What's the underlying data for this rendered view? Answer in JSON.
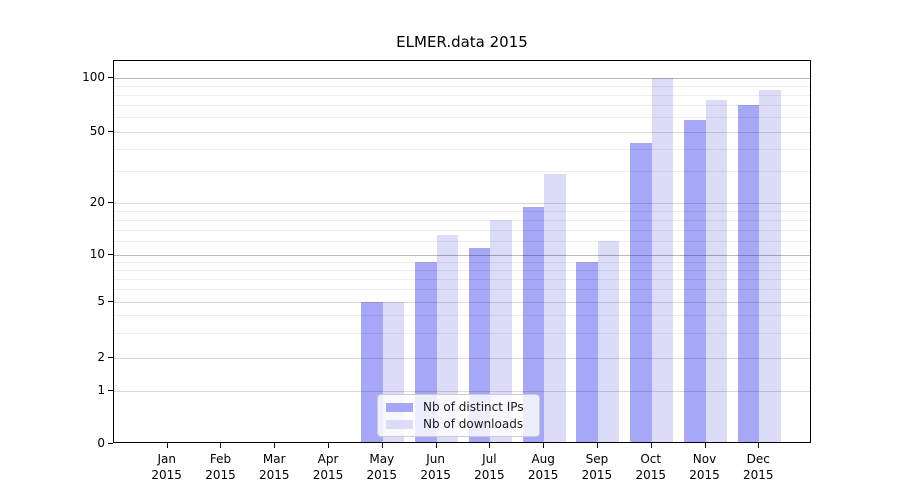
{
  "title": "ELMER.data 2015",
  "chart_data": {
    "type": "bar",
    "title": "ELMER.data 2015",
    "categories": [
      "Jan 2015",
      "Feb 2015",
      "Mar 2015",
      "Apr 2015",
      "May 2015",
      "Jun 2015",
      "Jul 2015",
      "Aug 2015",
      "Sep 2015",
      "Oct 2015",
      "Nov 2015",
      "Dec 2015"
    ],
    "series": [
      {
        "name": "Nb of distinct IPs",
        "color": "#a7a7f7",
        "values": [
          0,
          0,
          0,
          0,
          5,
          9,
          11,
          19,
          9,
          43,
          58,
          70
        ]
      },
      {
        "name": "Nb of downloads",
        "color": "#dcdcf9",
        "values": [
          0,
          0,
          0,
          0,
          5,
          13,
          16,
          29,
          12,
          100,
          75,
          85
        ]
      }
    ],
    "xlabel": "",
    "ylabel": "",
    "yscale": "quasi-log with linear segment below 1",
    "yticks": [
      0,
      1,
      2,
      5,
      10,
      20,
      50,
      100
    ],
    "yticks_minor": [
      3,
      4,
      6,
      7,
      8,
      9,
      12,
      14,
      16,
      18,
      30,
      40,
      60,
      70,
      80,
      90
    ],
    "ylim": [
      0,
      120
    ],
    "grid": true,
    "legend_position": "lower center inside plot"
  }
}
